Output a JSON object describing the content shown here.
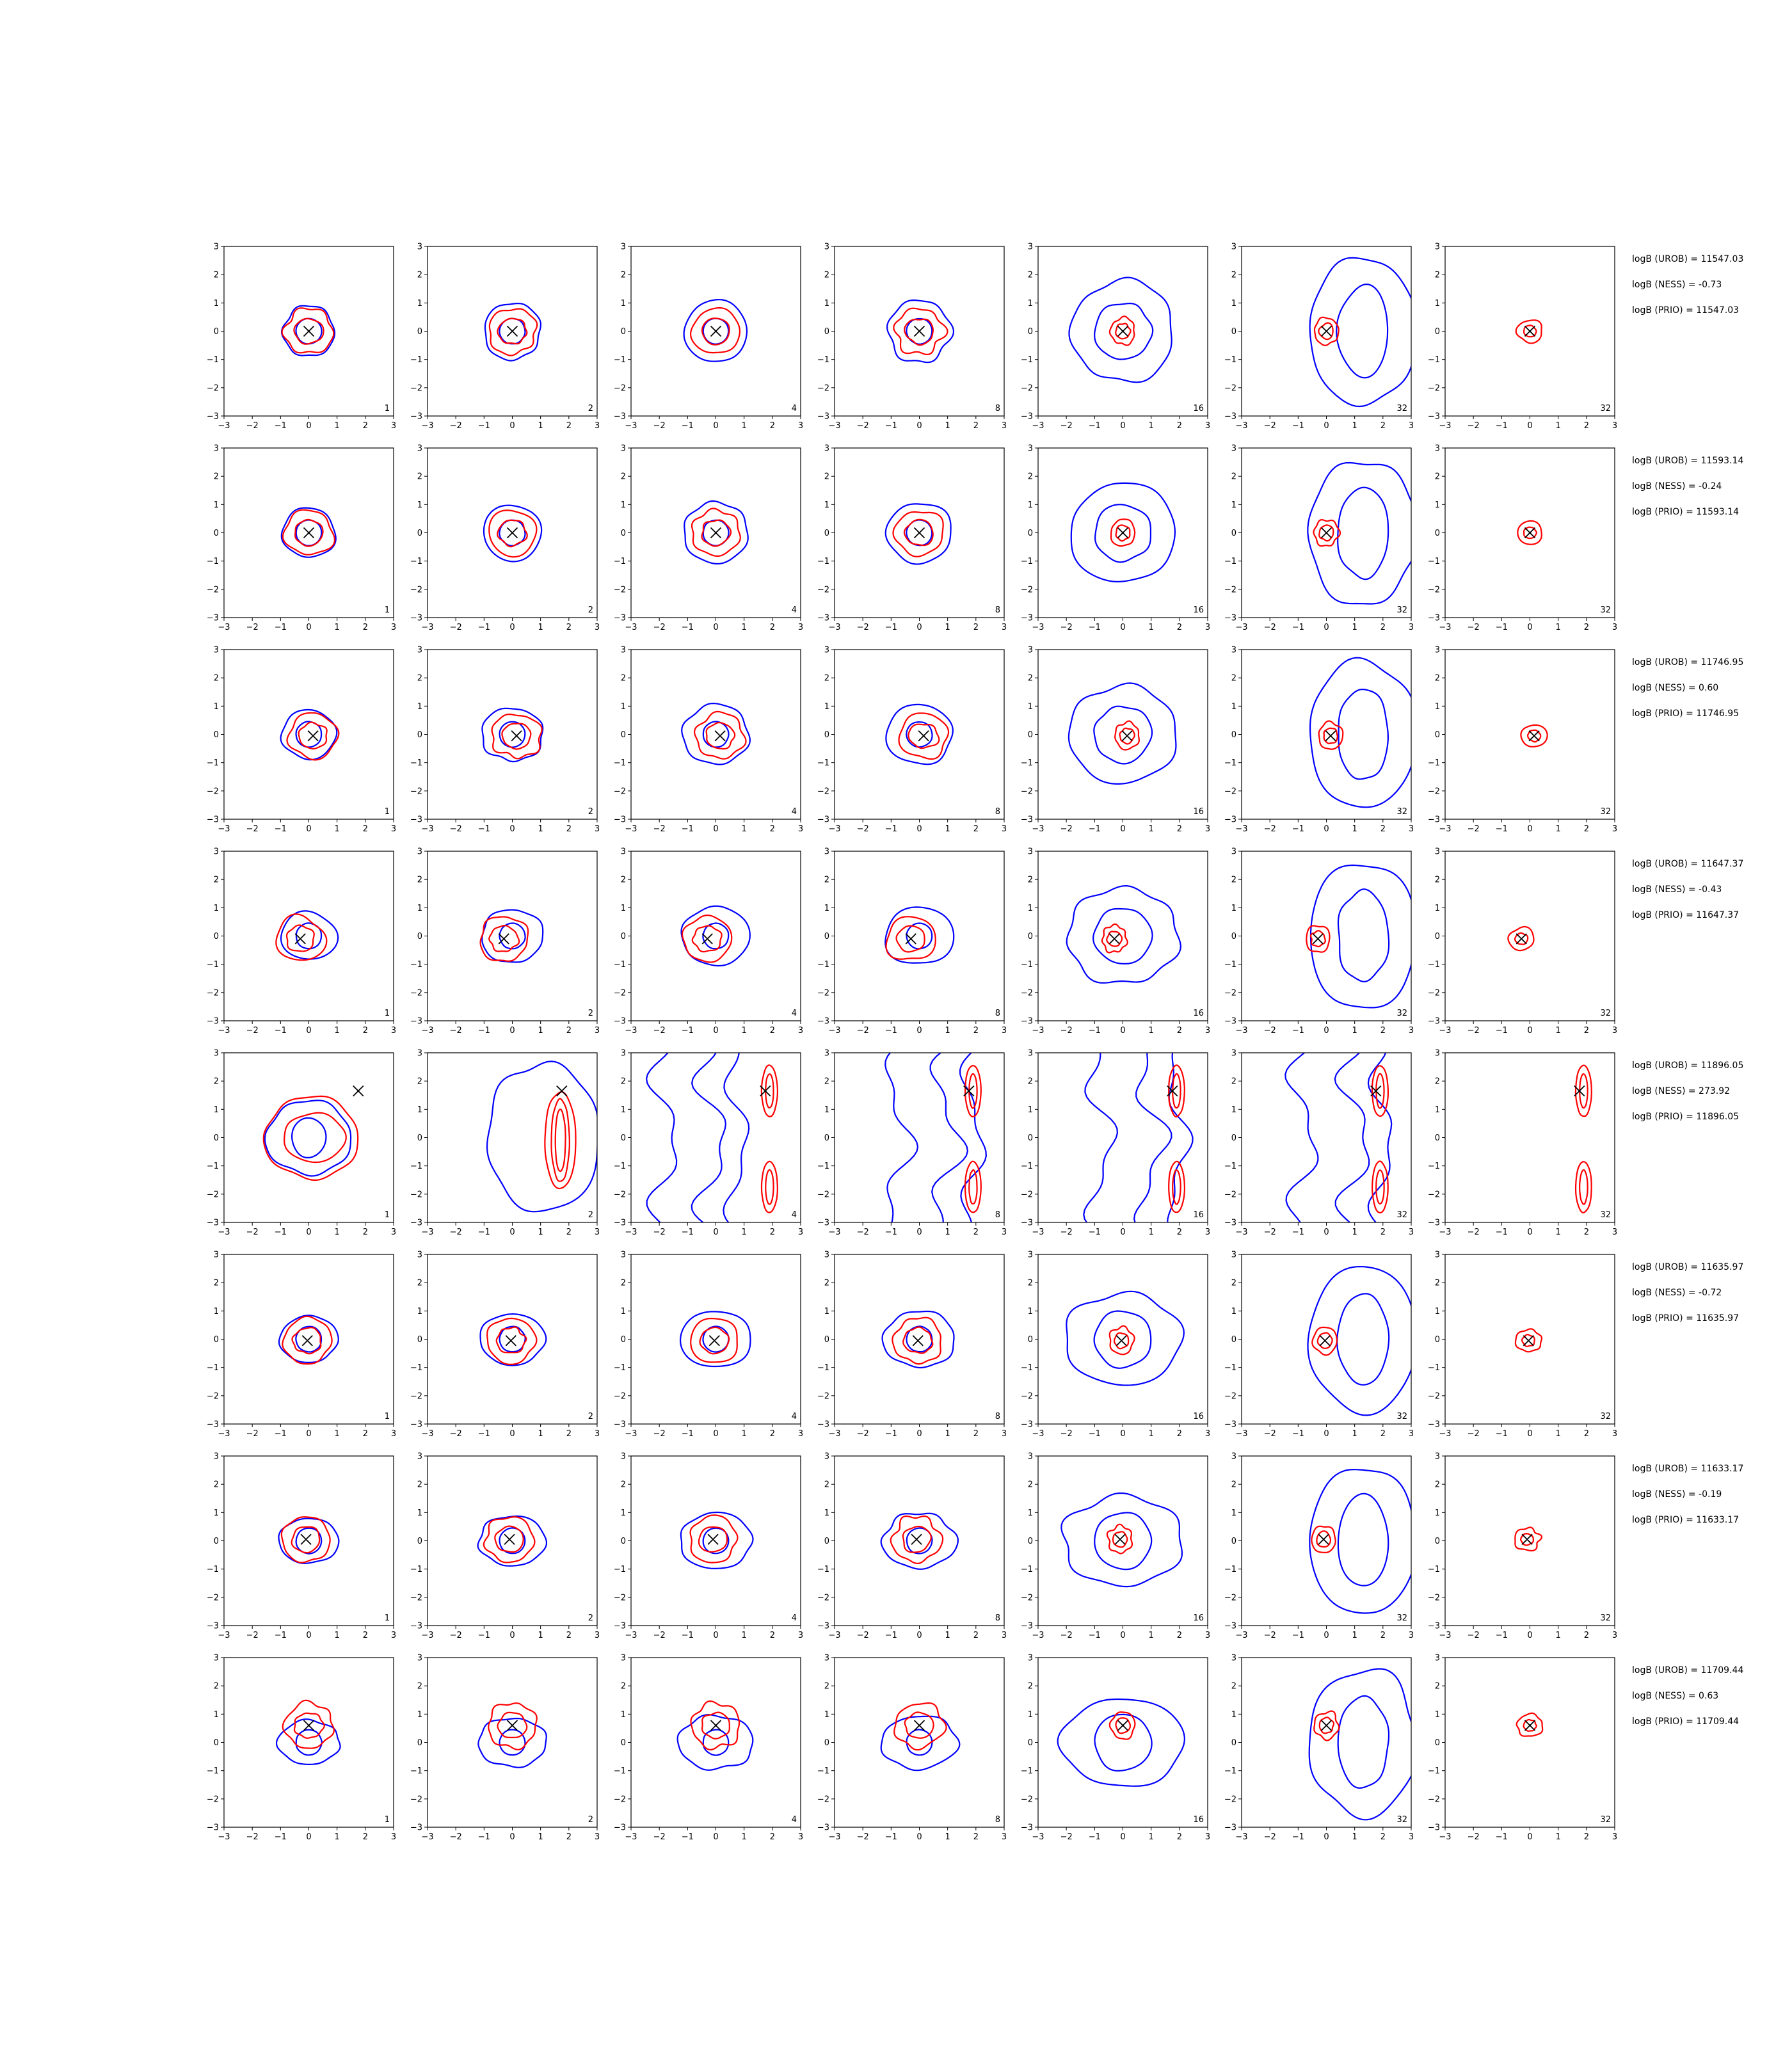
{
  "chart_data": {
    "type": "contour-grid",
    "grid": {
      "rows": 8,
      "cols": 7
    },
    "axes": {
      "xlim": [
        -3,
        3
      ],
      "ylim": [
        -3,
        3
      ],
      "xticks": [
        "−3",
        "−2",
        "−1",
        "0",
        "1",
        "2",
        "3"
      ],
      "yticks": [
        "−3",
        "−2",
        "−1",
        "0",
        "1",
        "2",
        "3"
      ]
    },
    "column_labels": [
      "1",
      "2",
      "4",
      "8",
      "16",
      "32",
      "32"
    ],
    "colors": {
      "contour_a": "#0000ff",
      "contour_b": "#ff0000",
      "marker": "#000000"
    },
    "rows": [
      {
        "marker": [
          0.0,
          0.0
        ],
        "annotations": [
          "logB (UROB) = 11547.03",
          "logB (NESS) = -0.73",
          "logB (PRIO) = 11547.03"
        ]
      },
      {
        "marker": [
          0.0,
          0.0
        ],
        "annotations": [
          "logB (UROB) = 11593.14",
          "logB (NESS) = -0.24",
          "logB (PRIO) = 11593.14"
        ]
      },
      {
        "marker": [
          0.15,
          -0.05
        ],
        "annotations": [
          "logB (UROB) = 11746.95",
          "logB (NESS) = 0.60",
          "logB (PRIO) = 11746.95"
        ]
      },
      {
        "marker": [
          -0.3,
          -0.1
        ],
        "annotations": [
          "logB (UROB) = 11647.37",
          "logB (NESS) = -0.43",
          "logB (PRIO) = 11647.37"
        ]
      },
      {
        "marker": [
          1.75,
          1.65
        ],
        "annotations": [
          "logB (UROB) = 11896.05",
          "logB (NESS) = 273.92",
          "logB (PRIO) = 11896.05"
        ]
      },
      {
        "marker": [
          -0.05,
          -0.05
        ],
        "annotations": [
          "logB (UROB) = 11635.97",
          "logB (NESS) = -0.72",
          "logB (PRIO) = 11635.97"
        ]
      },
      {
        "marker": [
          -0.1,
          0.05
        ],
        "annotations": [
          "logB (UROB) = 11633.17",
          "logB (NESS) = -0.19",
          "logB (PRIO) = 11633.17"
        ]
      },
      {
        "marker": [
          0.0,
          0.6
        ],
        "annotations": [
          "logB (UROB) = 11709.44",
          "logB (NESS) = 0.63",
          "logB (PRIO) = 11709.44"
        ]
      }
    ]
  }
}
